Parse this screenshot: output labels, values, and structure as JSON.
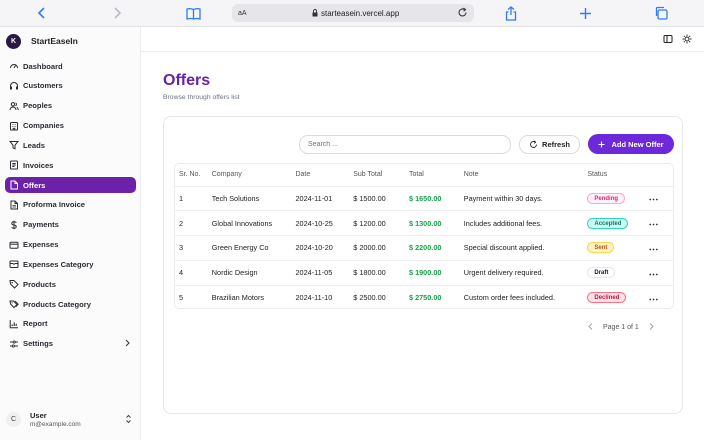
{
  "browser": {
    "aa_label": "aA",
    "url": "starteasein.vercel.app"
  },
  "sidebar": {
    "brand_initial": "K",
    "brand_name": "StartEaseIn",
    "items": [
      {
        "label": "Dashboard",
        "icon": "gauge-icon"
      },
      {
        "label": "Customers",
        "icon": "headset-icon"
      },
      {
        "label": "Peoples",
        "icon": "users-icon"
      },
      {
        "label": "Companies",
        "icon": "building-icon"
      },
      {
        "label": "Leads",
        "icon": "filter-icon"
      },
      {
        "label": "Invoices",
        "icon": "receipt-icon"
      },
      {
        "label": "Offers",
        "icon": "file-icon",
        "active": true
      },
      {
        "label": "Proforma Invoice",
        "icon": "file-text-icon"
      },
      {
        "label": "Payments",
        "icon": "dollar-icon"
      },
      {
        "label": "Expenses",
        "icon": "wallet-icon"
      },
      {
        "label": "Expenses Category",
        "icon": "wallet-cards-icon"
      },
      {
        "label": "Products",
        "icon": "tag-icon"
      },
      {
        "label": "Products Category",
        "icon": "tags-icon"
      },
      {
        "label": "Report",
        "icon": "chart-icon"
      },
      {
        "label": "Settings",
        "icon": "settings-icon"
      }
    ],
    "user": {
      "initial": "C",
      "name": "User",
      "email": "m@example.com"
    }
  },
  "main": {
    "title": "Offers",
    "subtitle": "Browse through offers list",
    "search_placeholder": "Search ...",
    "refresh_label": "Refresh",
    "add_label": "Add New Offer",
    "columns": [
      "Sr. No.",
      "Company",
      "Date",
      "Sub Total",
      "Total",
      "Note",
      "Status"
    ],
    "rows": [
      {
        "sr": "1",
        "company": "Tech Solutions",
        "date": "2024-11-01",
        "subtotal": "$ 1500.00",
        "total": "$ 1650.00",
        "note": "Payment within 30 days.",
        "status": "Pending"
      },
      {
        "sr": "2",
        "company": "Global Innovations",
        "date": "2024-10-25",
        "subtotal": "$ 1200.00",
        "total": "$ 1300.00",
        "note": "Includes additional fees.",
        "status": "Accepted"
      },
      {
        "sr": "3",
        "company": "Green Energy Co",
        "date": "2024-10-20",
        "subtotal": "$ 2000.00",
        "total": "$ 2200.00",
        "note": "Special discount applied.",
        "status": "Sent"
      },
      {
        "sr": "4",
        "company": "Nordic Design",
        "date": "2024-11-05",
        "subtotal": "$ 1800.00",
        "total": "$ 1900.00",
        "note": "Urgent delivery required.",
        "status": "Draft"
      },
      {
        "sr": "5",
        "company": "Brazilian Motors",
        "date": "2024-11-10",
        "subtotal": "$ 2500.00",
        "total": "$ 2750.00",
        "note": "Custom order fees included.",
        "status": "Declined"
      }
    ],
    "status_styles": {
      "Pending": {
        "fg": "#db2777",
        "bg": "#fdf2f8",
        "border": "#f9a8d4"
      },
      "Accepted": {
        "fg": "#0f766e",
        "bg": "#ccfbf1",
        "border": "#2dd4bf"
      },
      "Sent": {
        "fg": "#b45309",
        "bg": "#fef3c7",
        "border": "#fcd34d"
      },
      "Draft": {
        "fg": "#111827",
        "bg": "#ffffff",
        "border": "#e5e7eb"
      },
      "Declined": {
        "fg": "#be123c",
        "bg": "#ffe4e6",
        "border": "#fb7185"
      }
    },
    "pager": "Page 1 of 1"
  },
  "colors": {
    "accent": "#6b21a8",
    "button": "#6d28d9",
    "total_green": "#16a34a"
  }
}
